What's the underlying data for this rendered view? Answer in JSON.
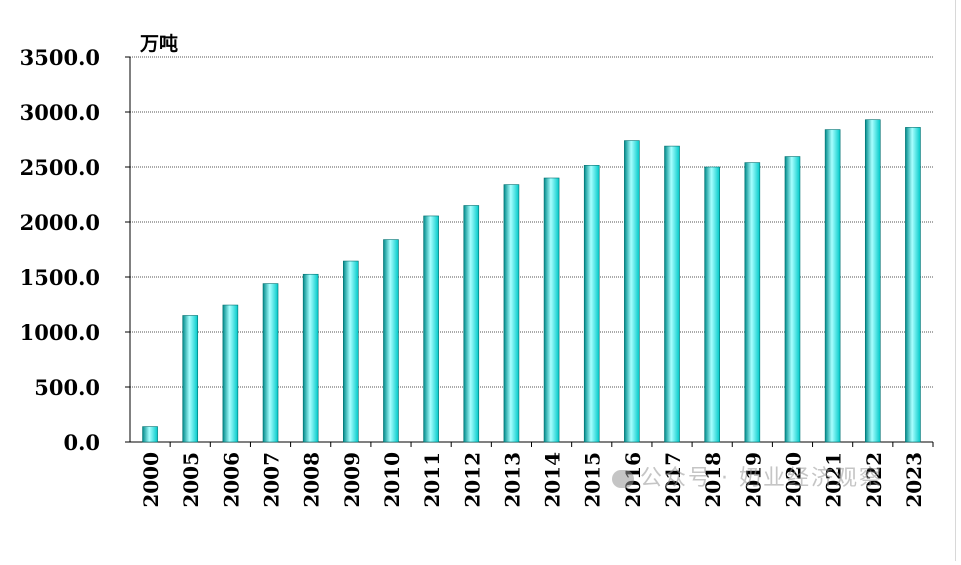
{
  "chart_data": {
    "type": "bar",
    "unit_label": "万吨",
    "categories": [
      "2000",
      "2005",
      "2006",
      "2007",
      "2008",
      "2009",
      "2010",
      "2011",
      "2012",
      "2013",
      "2014",
      "2015",
      "2016",
      "2017",
      "2018",
      "2019",
      "2020",
      "2021",
      "2022",
      "2023"
    ],
    "values": [
      140,
      1150,
      1245,
      1440,
      1525,
      1645,
      1840,
      2055,
      2150,
      2340,
      2400,
      2515,
      2740,
      2690,
      2500,
      2540,
      2595,
      2840,
      2930,
      2860
    ],
    "ylim": [
      0,
      3500
    ],
    "yticks": [
      "0.0",
      "500.0",
      "1000.0",
      "1500.0",
      "2000.0",
      "2500.0",
      "3000.0",
      "3500.0"
    ],
    "grid": true,
    "bar_color": "#00c8c8",
    "bar_highlight": "#a8ffff",
    "bar_shadow": "#008a8a"
  },
  "watermark": {
    "text": "公众号 · 奶业经济观察"
  }
}
